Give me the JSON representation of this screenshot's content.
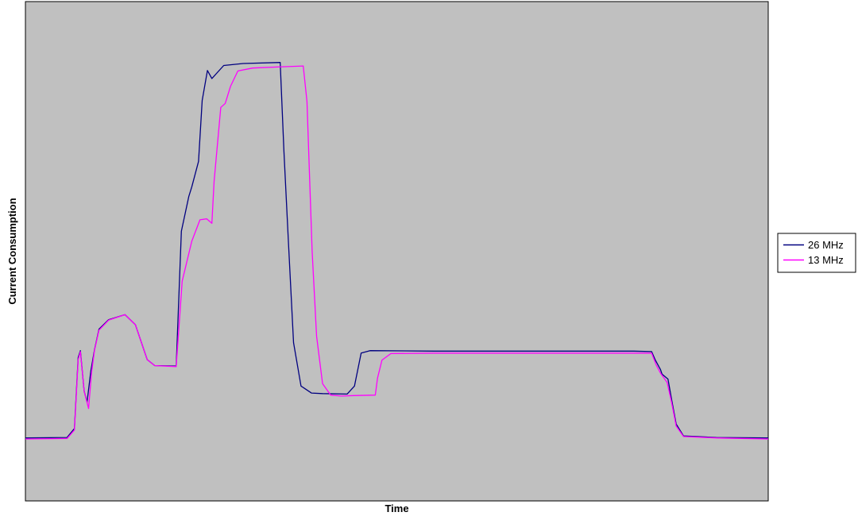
{
  "chart_data": {
    "type": "line",
    "title": "",
    "xlabel": "Time",
    "ylabel": "Current Consumption",
    "xlim": [
      0,
      100
    ],
    "ylim": [
      0,
      100
    ],
    "x_ticks_shown": false,
    "y_ticks_shown": false,
    "grid": false,
    "plot_background": "#C0C0C0",
    "legend_position": "right",
    "series": [
      {
        "name": "26 MHz",
        "color": "#000080",
        "points": [
          [
            0,
            12.6
          ],
          [
            5.6,
            12.7
          ],
          [
            6.6,
            14.5
          ],
          [
            7.1,
            28.7
          ],
          [
            7.4,
            30.1
          ],
          [
            7.9,
            22.0
          ],
          [
            8.3,
            19.8
          ],
          [
            8.8,
            26.0
          ],
          [
            9.3,
            30.3
          ],
          [
            9.9,
            34.4
          ],
          [
            11.2,
            36.3
          ],
          [
            13.4,
            37.3
          ],
          [
            14.8,
            35.3
          ],
          [
            16.4,
            28.3
          ],
          [
            17.4,
            27.1
          ],
          [
            20.3,
            27.0
          ],
          [
            21.0,
            54.0
          ],
          [
            22.0,
            61.0
          ],
          [
            22.4,
            62.9
          ],
          [
            23.3,
            68.0
          ],
          [
            23.8,
            80.2
          ],
          [
            24.5,
            86.2
          ],
          [
            25.1,
            84.6
          ],
          [
            26.7,
            87.2
          ],
          [
            29.3,
            87.6
          ],
          [
            34.3,
            87.8
          ],
          [
            34.8,
            70.0
          ],
          [
            35.4,
            52.0
          ],
          [
            36.1,
            31.7
          ],
          [
            37.1,
            23.0
          ],
          [
            38.5,
            21.6
          ],
          [
            40.0,
            21.5
          ],
          [
            43.3,
            21.4
          ],
          [
            44.3,
            23.0
          ],
          [
            45.2,
            29.6
          ],
          [
            46.4,
            30.1
          ],
          [
            55.0,
            30.0
          ],
          [
            70.0,
            30.0
          ],
          [
            81.9,
            30.0
          ],
          [
            84.3,
            29.9
          ],
          [
            84.8,
            28.2
          ],
          [
            85.5,
            26.3
          ],
          [
            85.7,
            25.4
          ],
          [
            86.5,
            24.4
          ],
          [
            87.0,
            20.2
          ],
          [
            87.6,
            15.4
          ],
          [
            88.6,
            13.0
          ],
          [
            93.0,
            12.7
          ],
          [
            100,
            12.6
          ]
        ]
      },
      {
        "name": "13 MHz",
        "color": "#FF00FF",
        "points": [
          [
            0,
            12.4
          ],
          [
            5.6,
            12.5
          ],
          [
            6.6,
            14.2
          ],
          [
            7.1,
            28.3
          ],
          [
            7.4,
            29.9
          ],
          [
            7.9,
            22.0
          ],
          [
            8.5,
            18.5
          ],
          [
            8.9,
            25.6
          ],
          [
            9.3,
            30.2
          ],
          [
            9.9,
            34.2
          ],
          [
            11.2,
            36.2
          ],
          [
            13.4,
            37.3
          ],
          [
            14.8,
            35.3
          ],
          [
            16.4,
            28.3
          ],
          [
            17.4,
            27.1
          ],
          [
            20.3,
            26.9
          ],
          [
            21.1,
            44.0
          ],
          [
            22.4,
            52.0
          ],
          [
            23.5,
            56.3
          ],
          [
            24.4,
            56.5
          ],
          [
            25.1,
            55.6
          ],
          [
            25.4,
            64.0
          ],
          [
            26.3,
            78.8
          ],
          [
            26.9,
            79.6
          ],
          [
            27.6,
            83.0
          ],
          [
            28.6,
            86.1
          ],
          [
            30.6,
            86.7
          ],
          [
            33.9,
            86.9
          ],
          [
            37.4,
            87.1
          ],
          [
            37.9,
            80.0
          ],
          [
            38.6,
            50.0
          ],
          [
            39.2,
            33.0
          ],
          [
            40.0,
            23.5
          ],
          [
            41.1,
            21.2
          ],
          [
            42.5,
            21.0
          ],
          [
            44.2,
            21.1
          ],
          [
            47.1,
            21.2
          ],
          [
            47.4,
            24.6
          ],
          [
            48.0,
            28.2
          ],
          [
            49.2,
            29.5
          ],
          [
            55.0,
            29.6
          ],
          [
            70.0,
            29.6
          ],
          [
            84.3,
            29.6
          ],
          [
            84.9,
            27.3
          ],
          [
            85.5,
            25.6
          ],
          [
            86.4,
            23.7
          ],
          [
            87.0,
            19.6
          ],
          [
            87.6,
            15.0
          ],
          [
            88.6,
            12.9
          ],
          [
            93.0,
            12.6
          ],
          [
            100,
            12.4
          ]
        ]
      }
    ]
  }
}
